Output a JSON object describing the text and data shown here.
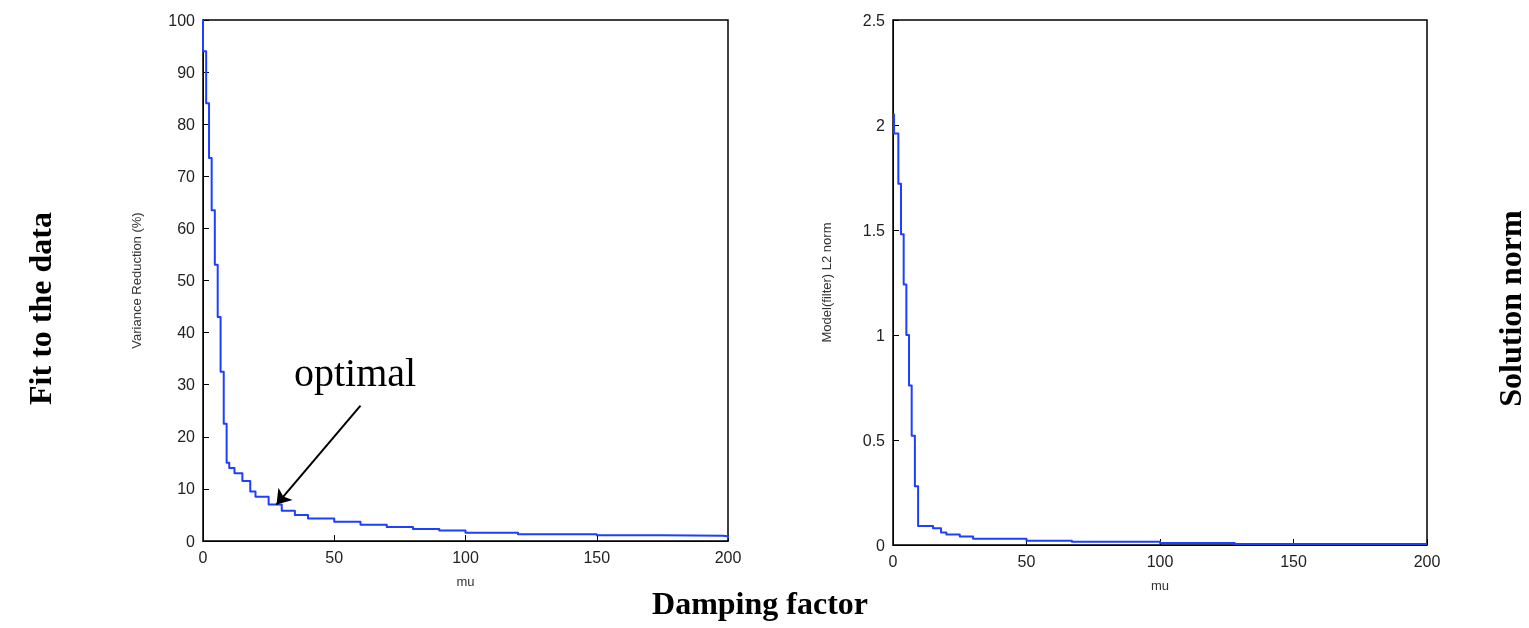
{
  "chart_data": [
    {
      "type": "step",
      "xlabel": "mu",
      "ylabel": "Variance Reduction (%)",
      "color": "#1f3fff",
      "x": [
        0,
        0,
        1.2,
        2.3,
        3.3,
        4.5,
        5.6,
        6.7,
        7.9,
        9,
        10,
        12,
        15,
        18,
        20,
        25,
        30,
        35,
        40,
        50,
        60,
        70,
        80,
        90,
        100,
        120,
        150,
        175,
        198,
        200
      ],
      "values": [
        100,
        94,
        84,
        73.5,
        63.5,
        53,
        43,
        32.5,
        22.5,
        15,
        14,
        13,
        11.5,
        9.5,
        8.5,
        7,
        5.8,
        5,
        4.3,
        3.7,
        3.1,
        2.7,
        2.3,
        2,
        1.6,
        1.3,
        1.1,
        1,
        0.9,
        0.5
      ],
      "xlim": [
        0,
        200
      ],
      "xticks": [
        0,
        50,
        100,
        150,
        200
      ],
      "ylim": [
        0,
        100
      ],
      "yticks": [
        0,
        10,
        20,
        30,
        40,
        50,
        60,
        70,
        80,
        90,
        100
      ],
      "annotations": [
        "Fit to the data",
        "Damping factor",
        {
          "text": "optimal",
          "x": 28,
          "y": 7
        }
      ]
    },
    {
      "type": "step",
      "xlabel": "mu",
      "ylabel": "Model(filter) L2 norm",
      "color": "#1f3fff",
      "x": [
        0,
        0.4,
        2,
        3,
        4,
        5,
        6,
        7,
        8.2,
        9.4,
        15,
        18,
        20,
        25,
        30,
        45,
        50,
        67,
        100,
        128,
        200
      ],
      "values": [
        2.05,
        1.96,
        1.72,
        1.48,
        1.24,
        1.0,
        0.76,
        0.52,
        0.28,
        0.09,
        0.08,
        0.06,
        0.05,
        0.04,
        0.03,
        0.03,
        0.02,
        0.015,
        0.01,
        0.005,
        0.003
      ],
      "xlim": [
        0,
        200
      ],
      "xticks": [
        0,
        50,
        100,
        150,
        200
      ],
      "ylim": [
        0,
        2.5
      ],
      "yticks": [
        0,
        0.5,
        1,
        1.5,
        2,
        2.5
      ],
      "annotations": [
        "Solution norm"
      ]
    }
  ]
}
